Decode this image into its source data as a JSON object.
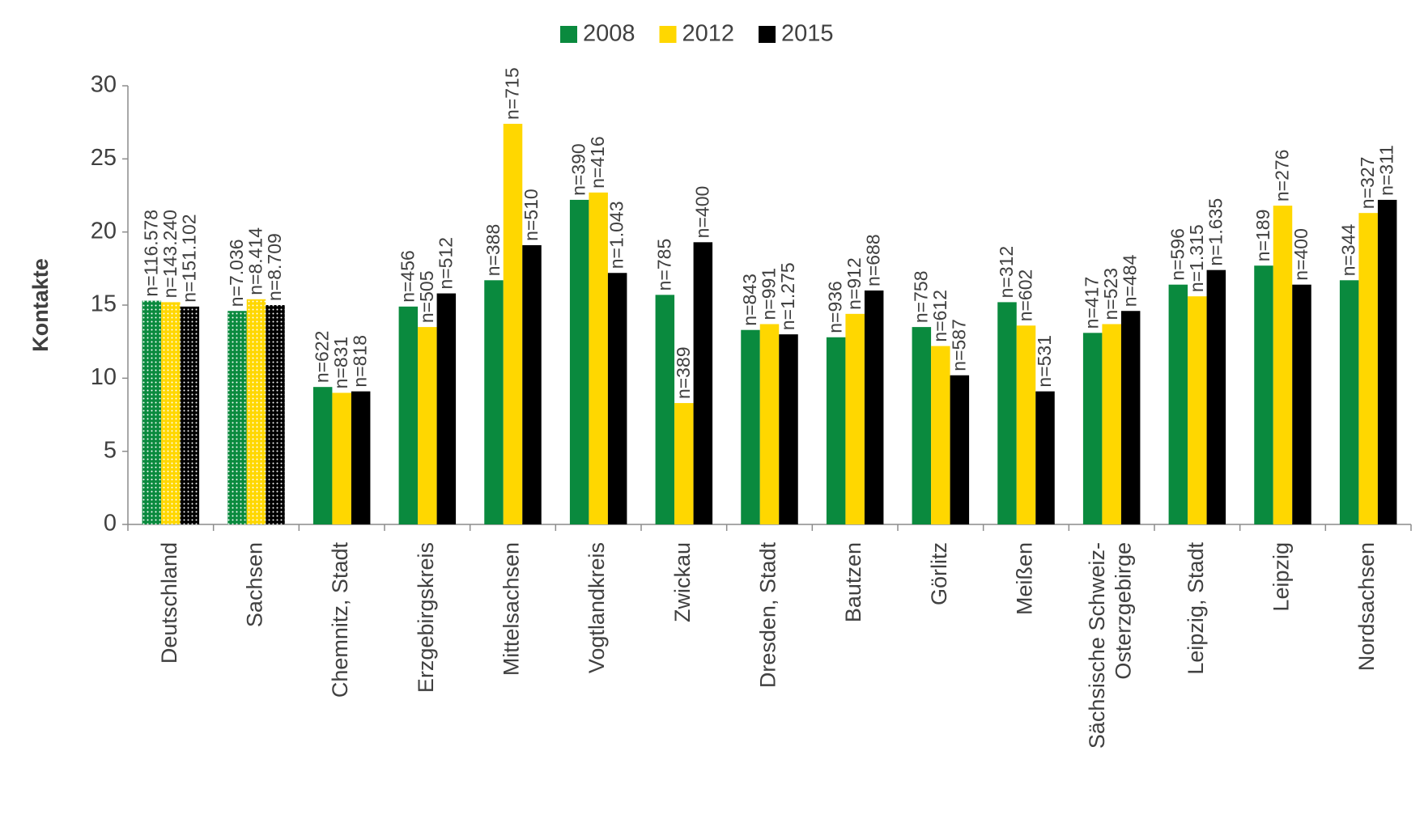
{
  "chart_data": {
    "type": "bar",
    "y_label": "Kontakte",
    "categories": [
      "Deutschland",
      "Sachsen",
      "Chemnitz, Stadt",
      "Erzgebirgskreis",
      "Mittelsachsen",
      "Vogtlandkreis",
      "Zwickau",
      "Dresden, Stadt",
      "Bautzen",
      "Görlitz",
      "Meißen",
      "Sächsische Schweiz-\nOsterzgebirge",
      "Leipzig, Stadt",
      "Leipzig",
      "Nordsachsen"
    ],
    "patterned": [
      true,
      true,
      false,
      false,
      false,
      false,
      false,
      false,
      false,
      false,
      false,
      false,
      false,
      false,
      false
    ],
    "series": [
      {
        "name": "2008",
        "color": "#0a8a3e",
        "values": [
          15.3,
          14.6,
          9.4,
          14.9,
          16.7,
          22.2,
          15.7,
          13.3,
          12.8,
          13.5,
          15.2,
          13.1,
          16.4,
          17.7,
          16.7
        ],
        "sample_sizes": [
          "n=116.578",
          "n=7.036",
          "n=622",
          "n=456",
          "n=388",
          "n=390",
          "n=785",
          "n=843",
          "n=936",
          "n=758",
          "n=312",
          "n=417",
          "n=596",
          "n=189",
          "n=344"
        ]
      },
      {
        "name": "2012",
        "color": "#ffd700",
        "values": [
          15.2,
          15.4,
          9.0,
          13.5,
          27.4,
          22.7,
          8.3,
          13.7,
          14.4,
          12.2,
          13.6,
          13.7,
          15.6,
          21.8,
          21.3
        ],
        "sample_sizes": [
          "n=143.240",
          "n=8.414",
          "n=831",
          "n=505",
          "n=715",
          "n=416",
          "n=389",
          "n=991",
          "n=912",
          "n=612",
          "n=602",
          "n=523",
          "n=1.315",
          "n=276",
          "n=327"
        ]
      },
      {
        "name": "2015",
        "color": "#000000",
        "values": [
          14.9,
          15.0,
          9.1,
          15.8,
          19.1,
          17.2,
          19.3,
          13.0,
          16.0,
          10.2,
          9.1,
          14.6,
          17.4,
          16.4,
          22.2
        ],
        "sample_sizes": [
          "n=151.102",
          "n=8.709",
          "n=818",
          "n=512",
          "n=510",
          "n=1.043",
          "n=400",
          "n=1.275",
          "n=688",
          "n=587",
          "n=531",
          "n=484",
          "n=1.635",
          "n=400",
          "n=311"
        ]
      }
    ],
    "ylim": [
      0,
      30
    ],
    "yticks": [
      0,
      5,
      10,
      15,
      20,
      25,
      30
    ],
    "grid": false,
    "legend": "top"
  }
}
